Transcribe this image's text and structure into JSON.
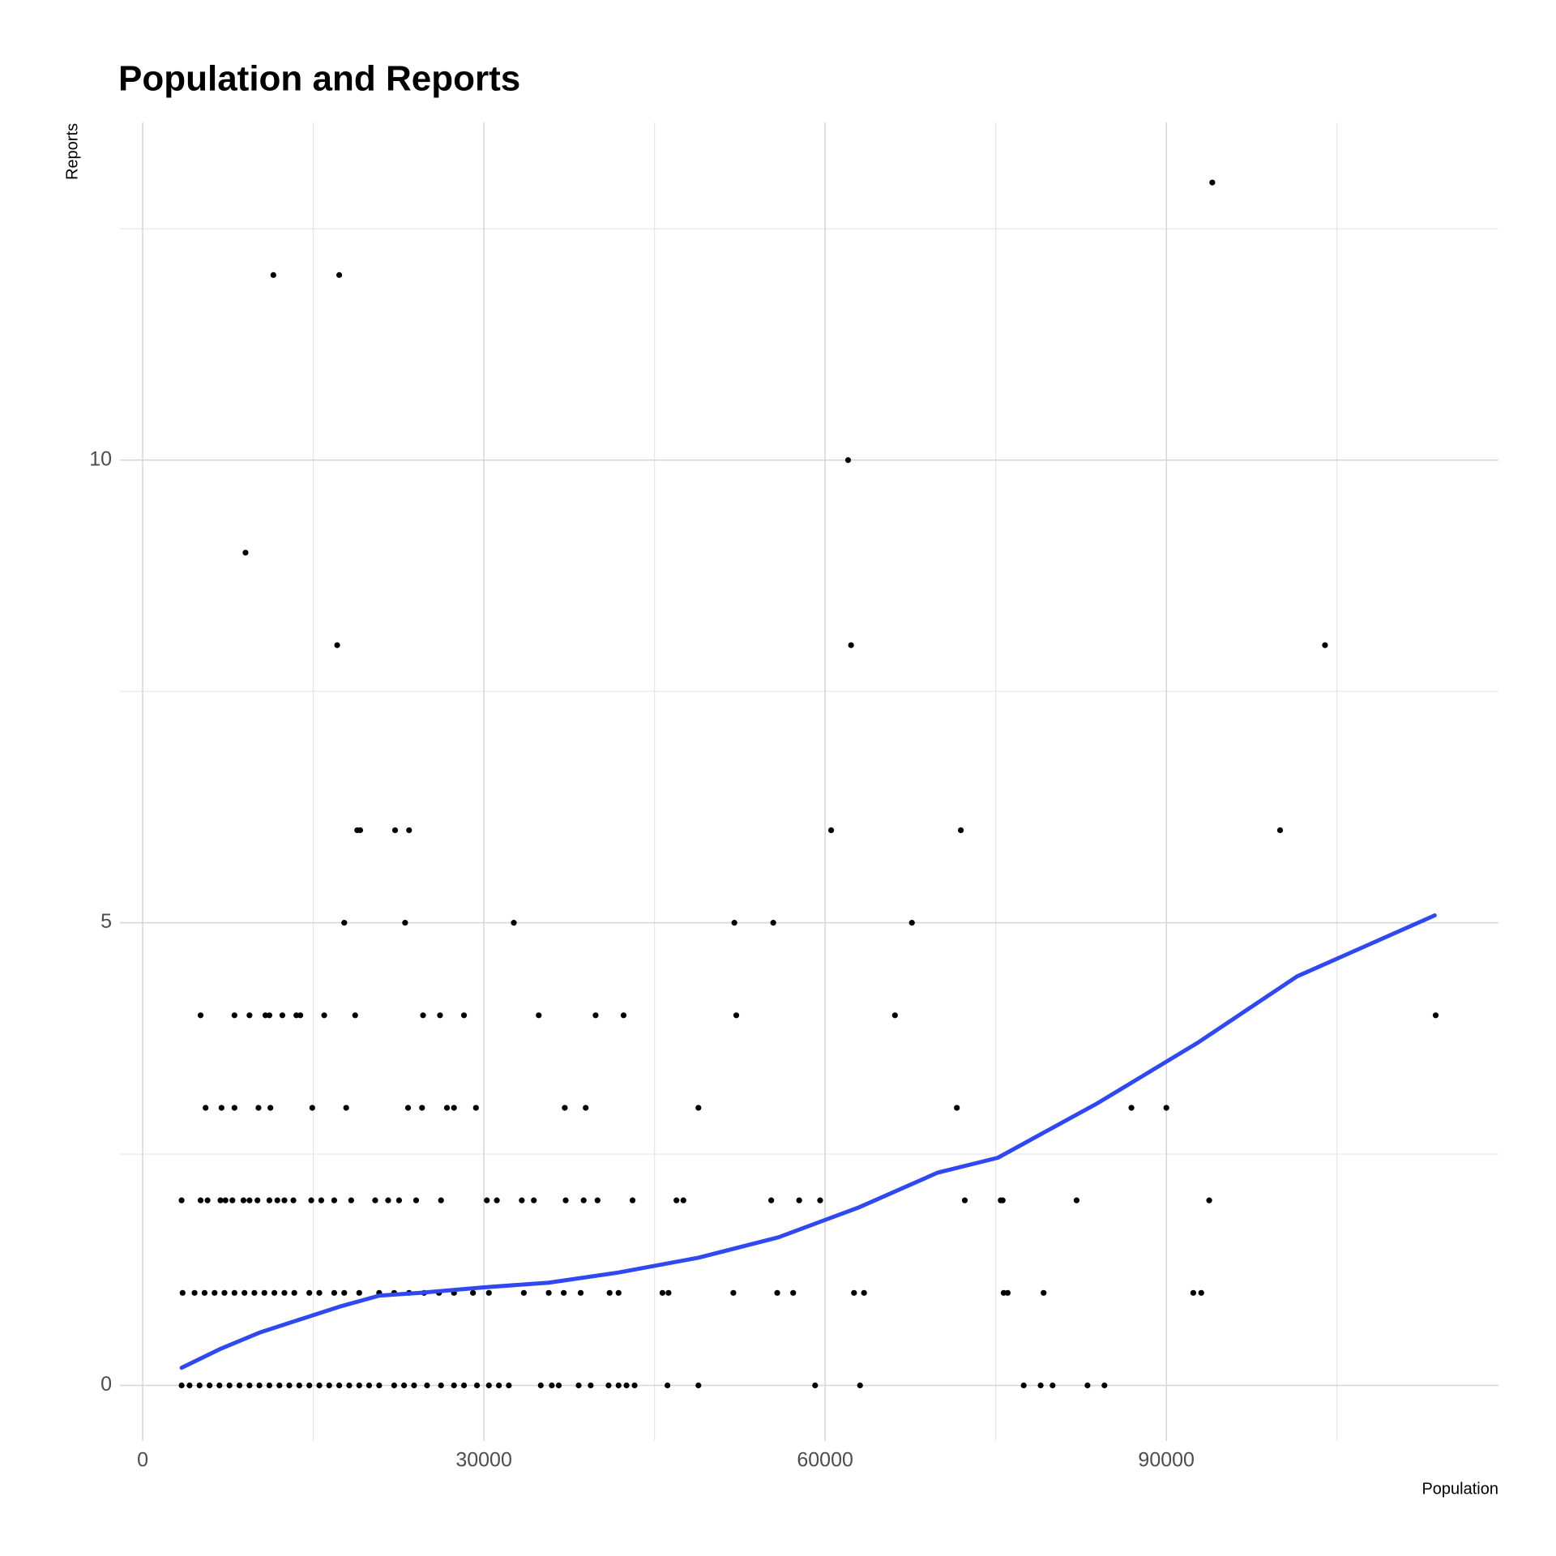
{
  "chart_data": {
    "type": "scatter",
    "title": "Population and Reports",
    "x_label": "Population",
    "y_label": "Reports",
    "xlim": [
      -2000,
      119200
    ],
    "ylim": [
      -0.6,
      13.65
    ],
    "xticks": [
      0,
      30000,
      60000,
      90000
    ],
    "yticks": [
      0,
      5,
      10
    ],
    "minor_xticks": [
      15000,
      45000,
      75000,
      105000
    ],
    "minor_yticks": [
      2.5,
      7.5,
      12.5
    ],
    "grid": true,
    "series": [
      {
        "color": "#000000",
        "x": [
          94040,
          11490,
          17280,
          62020,
          9040,
          17100,
          62280,
          103950,
          18860,
          19120,
          22190,
          23420,
          60530,
          71930,
          100000,
          17720,
          23070,
          32630,
          52020,
          55440,
          67630,
          5090,
          8070,
          9390,
          10790,
          11140,
          12280,
          13510,
          13860,
          15960,
          18680,
          24650,
          26140,
          28250,
          34820,
          39820,
          42280,
          52190,
          66140,
          113680,
          5530,
          6930,
          8070,
          10180,
          11230,
          14910,
          17890,
          23330,
          24560,
          26750,
          27370,
          29300,
          37110,
          38950,
          48860,
          71580,
          86930,
          90000,
          3420,
          5090,
          5700,
          6840,
          7280,
          7890,
          8860,
          9390,
          10090,
          11140,
          11840,
          12460,
          13250,
          14820,
          15700,
          16840,
          18330,
          20440,
          21580,
          22540,
          24040,
          26230,
          30260,
          31140,
          33330,
          34390,
          37190,
          38770,
          39990,
          43070,
          46930,
          47540,
          55260,
          57720,
          59560,
          72280,
          75440,
          75610,
          82110,
          93770,
          3510,
          4560,
          5440,
          6320,
          7190,
          8070,
          8950,
          9820,
          10700,
          11580,
          12460,
          13330,
          14650,
          15530,
          16840,
          17720,
          19040,
          20790,
          22110,
          23420,
          24740,
          26050,
          27370,
          29040,
          30440,
          33510,
          35700,
          37020,
          38510,
          41050,
          41840,
          45700,
          46230,
          51930,
          55790,
          57190,
          62540,
          63420,
          75700,
          76050,
          79210,
          92370,
          93070,
          3420,
          4120,
          5000,
          5880,
          6750,
          7630,
          8510,
          9390,
          10260,
          11140,
          12020,
          12890,
          13770,
          14650,
          15530,
          16400,
          17280,
          18160,
          19040,
          19910,
          20790,
          22110,
          22980,
          23860,
          25000,
          26230,
          27370,
          28250,
          29390,
          30440,
          31320,
          32190,
          35000,
          35970,
          36580,
          38330,
          39390,
          40960,
          41840,
          42540,
          43250,
          46140,
          48860,
          59120,
          63070,
          77460,
          78950,
          80000,
          83070,
          84560
        ],
        "values": [
          13,
          12,
          12,
          10,
          9,
          8,
          8,
          8,
          6,
          6,
          6,
          6,
          6,
          6,
          6,
          5,
          5,
          5,
          5,
          5,
          5,
          4,
          4,
          4,
          4,
          4,
          4,
          4,
          4,
          4,
          4,
          4,
          4,
          4,
          4,
          4,
          4,
          4,
          4,
          4,
          3,
          3,
          3,
          3,
          3,
          3,
          3,
          3,
          3,
          3,
          3,
          3,
          3,
          3,
          3,
          3,
          3,
          3,
          2,
          2,
          2,
          2,
          2,
          2,
          2,
          2,
          2,
          2,
          2,
          2,
          2,
          2,
          2,
          2,
          2,
          2,
          2,
          2,
          2,
          2,
          2,
          2,
          2,
          2,
          2,
          2,
          2,
          2,
          2,
          2,
          2,
          2,
          2,
          2,
          2,
          2,
          2,
          2,
          1,
          1,
          1,
          1,
          1,
          1,
          1,
          1,
          1,
          1,
          1,
          1,
          1,
          1,
          1,
          1,
          1,
          1,
          1,
          1,
          1,
          1,
          1,
          1,
          1,
          1,
          1,
          1,
          1,
          1,
          1,
          1,
          1,
          1,
          1,
          1,
          1,
          1,
          1,
          1,
          1,
          1,
          1,
          0,
          0,
          0,
          0,
          0,
          0,
          0,
          0,
          0,
          0,
          0,
          0,
          0,
          0,
          0,
          0,
          0,
          0,
          0,
          0,
          0,
          0,
          0,
          0,
          0,
          0,
          0,
          0,
          0,
          0,
          0,
          0,
          0,
          0,
          0,
          0,
          0,
          0,
          0,
          0,
          0,
          0,
          0,
          0,
          0,
          0,
          0,
          0,
          0,
          0
        ]
      },
      {
        "kind": "line",
        "color": "#3048f0",
        "x": [
          3420,
          6750,
          10260,
          13770,
          17280,
          20790,
          24300,
          30000,
          35700,
          41840,
          48860,
          55880,
          62890,
          69910,
          75180,
          83950,
          92720,
          101490,
          113600
        ],
        "values": [
          0.19,
          0.39,
          0.57,
          0.71,
          0.85,
          0.97,
          1.0,
          1.06,
          1.11,
          1.22,
          1.38,
          1.6,
          1.92,
          2.3,
          2.46,
          3.05,
          3.7,
          4.42,
          5.08
        ]
      }
    ]
  }
}
